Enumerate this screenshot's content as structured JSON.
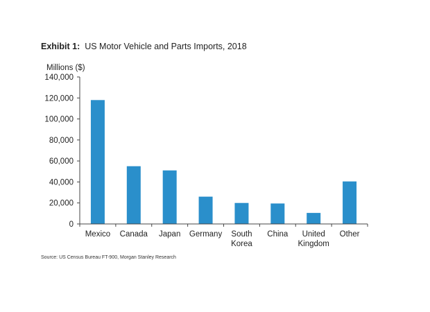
{
  "exhibit": {
    "label": "Exhibit 1:",
    "title": "US Motor Vehicle and Parts Imports, 2018"
  },
  "source": "Source: US Census Bureau FT-900, Morgan Stanley Research",
  "chart_data": {
    "type": "bar",
    "title": "US Motor Vehicle and Parts Imports, 2018",
    "ylabel": "Millions ($)",
    "xlabel": "",
    "ylim": [
      0,
      140000
    ],
    "yticks": [
      0,
      20000,
      40000,
      60000,
      80000,
      100000,
      120000,
      140000
    ],
    "ytick_labels": [
      "0",
      "20,000",
      "40,000",
      "60,000",
      "80,000",
      "100,000",
      "120,000",
      "140,000"
    ],
    "grid": false,
    "categories": [
      [
        "Mexico"
      ],
      [
        "Canada"
      ],
      [
        "Japan"
      ],
      [
        "Germany"
      ],
      [
        "South",
        "Korea"
      ],
      [
        "China"
      ],
      [
        "United",
        "Kingdom"
      ],
      [
        "Other"
      ]
    ],
    "values": [
      118000,
      55000,
      51000,
      26000,
      20000,
      19500,
      10500,
      40500
    ],
    "bar_color": "#2a8fcb",
    "axis_color": "#444444"
  }
}
